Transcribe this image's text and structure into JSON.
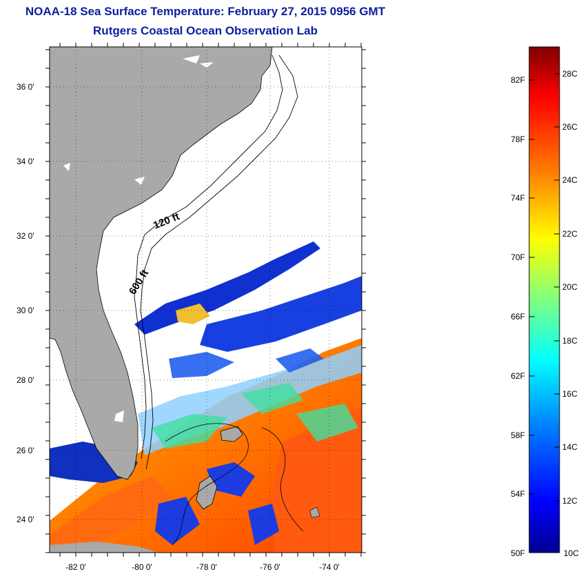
{
  "header": {
    "title": "NOAA-18 Sea Surface Temperature:  February 27, 2015 0956 GMT",
    "subtitle": "Rutgers Coastal Ocean Observation Lab"
  },
  "map": {
    "lat_ticks": [
      "36 0'",
      "34 0'",
      "32 0'",
      "30 0'",
      "28 0'",
      "26 0'",
      "24 0'"
    ],
    "lon_ticks": [
      "-82 0'",
      "-80 0'",
      "-78 0'",
      "-76 0'",
      "-74 0'"
    ],
    "contour_labels": {
      "shallow": "120 ft",
      "deep": "600 ft"
    },
    "colors": {
      "land": "#a9a9a9",
      "cloud": "#ffffff"
    }
  },
  "colorbar": {
    "fahrenheit_labels": [
      "82F",
      "78F",
      "74F",
      "70F",
      "66F",
      "62F",
      "58F",
      "54F",
      "50F"
    ],
    "celsius_labels": [
      "28C",
      "26C",
      "24C",
      "22C",
      "20C",
      "18C",
      "16C",
      "14C",
      "12C",
      "10C"
    ],
    "colormap": [
      "#7f0000",
      "#ff0000",
      "#ff8000",
      "#ffff00",
      "#80ff80",
      "#00ffff",
      "#0080ff",
      "#0000ff",
      "#00008f"
    ]
  }
}
